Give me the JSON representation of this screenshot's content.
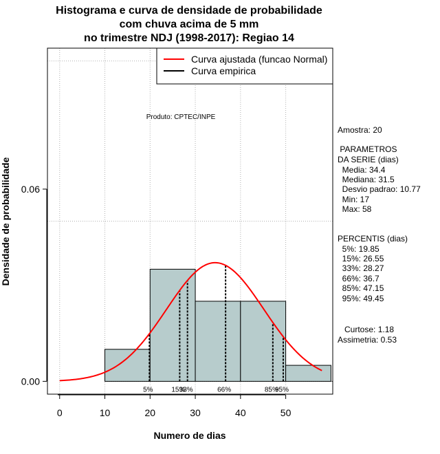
{
  "chart_data": {
    "type": "bar",
    "title": [
      "Histograma e curva de densidade de probabilidade",
      "com chuva acima de 5 mm",
      "no trimestre NDJ (1998-2017): Regiao 14"
    ],
    "xlabel": "Numero de dias",
    "ylabel": "Densidade de probabilidade",
    "xlim": [
      -2.7,
      60.4
    ],
    "ylim": [
      -0.004,
      0.104
    ],
    "x_ticks": [
      0,
      10,
      20,
      30,
      40,
      50
    ],
    "y_ticks": [
      {
        "value": 0.0,
        "label": "0.00"
      },
      {
        "value": 0.06,
        "label": "0.06"
      }
    ],
    "grid_x": [
      0,
      10,
      20,
      30,
      40,
      50
    ],
    "grid_y": [
      0.05,
      0.1
    ],
    "bins": [
      {
        "start": 10,
        "end": 20,
        "density": 0.01
      },
      {
        "start": 20,
        "end": 30,
        "density": 0.035
      },
      {
        "start": 30,
        "end": 40,
        "density": 0.025
      },
      {
        "start": 40,
        "end": 50,
        "density": 0.025
      },
      {
        "start": 50,
        "end": 60,
        "density": 0.005
      }
    ],
    "normal_curve": {
      "mean": 34.4,
      "sd": 10.77,
      "x_range": [
        0,
        58
      ],
      "color": "#ff0000"
    },
    "percentile_lines": [
      {
        "x": 19.85,
        "label": "5%"
      },
      {
        "x": 26.55,
        "label": "15%"
      },
      {
        "x": 28.27,
        "label": "33%"
      },
      {
        "x": 36.7,
        "label": "66%"
      },
      {
        "x": 47.15,
        "label": "85%"
      },
      {
        "x": 49.45,
        "label": "95%"
      }
    ],
    "legend": [
      {
        "label": "Curva ajustada (funcao Normal)",
        "color": "#ff0000"
      },
      {
        "label": "Curva empirica",
        "color": "#000000"
      }
    ],
    "legend_position": "top-right",
    "annotation": "Produto: CPTEC/INPE",
    "bar_color": "#b7cccc"
  },
  "stats": {
    "amostra": "Amostra: 20",
    "param_title1": " PARAMETROS",
    "param_title2": "DA SERIE (dias)",
    "media": "  Media: 34.4",
    "mediana": "  Mediana: 31.5",
    "desvio": "  Desvio padrao: 10.77",
    "min": "  Min: 17",
    "max": "  Max: 58",
    "perc_title": "PERCENTIS (dias)",
    "p5": "  5%: 19.85",
    "p15": "  15%: 26.55",
    "p33": "  33%: 28.27",
    "p66": "  66%: 36.7",
    "p85": "  85%: 47.15",
    "p95": "  95%: 49.45",
    "curtose": "   Curtose: 1.18",
    "assimetria": "Assimetria: 0.53"
  }
}
